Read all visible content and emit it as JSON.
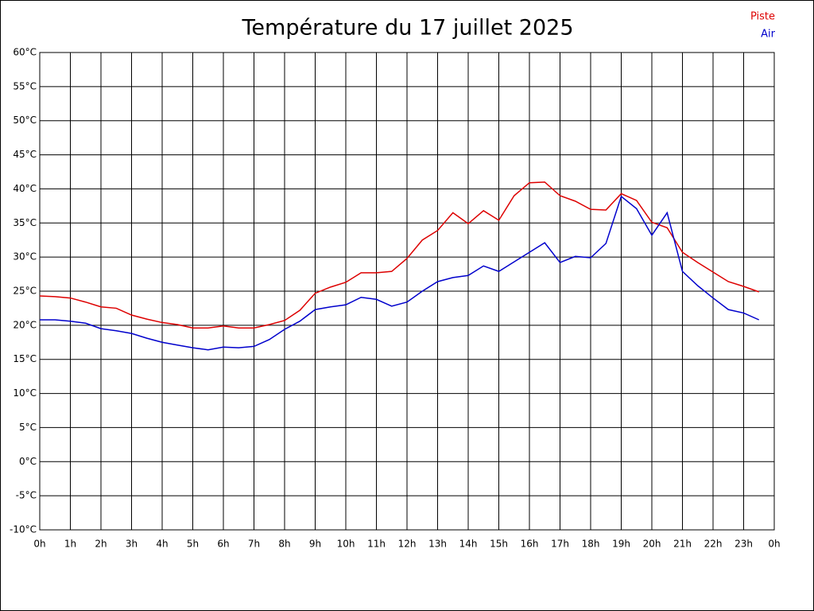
{
  "chart_data": {
    "type": "line",
    "title": "Température du 17 juillet 2025",
    "x": [
      0,
      0.5,
      1,
      1.5,
      2,
      2.5,
      3,
      3.5,
      4,
      4.5,
      5,
      5.5,
      6,
      6.5,
      7,
      7.5,
      8,
      8.5,
      9,
      9.5,
      10,
      10.5,
      11,
      11.5,
      12,
      12.5,
      13,
      13.5,
      14,
      14.5,
      15,
      15.5,
      16,
      16.5,
      17,
      17.5,
      18,
      18.5,
      19,
      19.5,
      20,
      20.5,
      21,
      21.5,
      22,
      22.5,
      23,
      23.5
    ],
    "series": [
      {
        "name": "Piste",
        "color": "#dd0000",
        "values": [
          24.3,
          24.2,
          24.0,
          23.4,
          22.7,
          22.5,
          21.5,
          20.9,
          20.4,
          20.1,
          19.6,
          19.6,
          19.9,
          19.6,
          19.6,
          20.1,
          20.7,
          22.2,
          24.7,
          25.6,
          26.3,
          27.7,
          27.7,
          27.9,
          29.8,
          32.5,
          33.9,
          36.5,
          34.9,
          36.8,
          35.4,
          39.0,
          40.9,
          41.0,
          39.0,
          38.2,
          37.0,
          36.9,
          39.3,
          38.3,
          35.1,
          34.3,
          30.7,
          29.2,
          27.8,
          26.4,
          25.7,
          24.9
        ]
      },
      {
        "name": "Air",
        "color": "#0000cc",
        "values": [
          20.8,
          20.8,
          20.6,
          20.3,
          19.5,
          19.2,
          18.8,
          18.1,
          17.5,
          17.1,
          16.7,
          16.4,
          16.8,
          16.7,
          16.9,
          17.9,
          19.4,
          20.6,
          22.3,
          22.7,
          23.0,
          24.1,
          23.8,
          22.8,
          23.4,
          25.0,
          26.4,
          27.0,
          27.3,
          28.7,
          27.9,
          29.3,
          30.7,
          32.1,
          29.2,
          30.1,
          29.9,
          32.0,
          38.9,
          37.1,
          33.2,
          36.5,
          27.9,
          25.8,
          24.0,
          22.3,
          21.8,
          20.8
        ]
      }
    ],
    "xlim": [
      0,
      24
    ],
    "xticks": [
      {
        "value": 0,
        "label": "0h"
      },
      {
        "value": 1,
        "label": "1h"
      },
      {
        "value": 2,
        "label": "2h"
      },
      {
        "value": 3,
        "label": "3h"
      },
      {
        "value": 4,
        "label": "4h"
      },
      {
        "value": 5,
        "label": "5h"
      },
      {
        "value": 6,
        "label": "6h"
      },
      {
        "value": 7,
        "label": "7h"
      },
      {
        "value": 8,
        "label": "8h"
      },
      {
        "value": 9,
        "label": "9h"
      },
      {
        "value": 10,
        "label": "10h"
      },
      {
        "value": 11,
        "label": "11h"
      },
      {
        "value": 12,
        "label": "12h"
      },
      {
        "value": 13,
        "label": "13h"
      },
      {
        "value": 14,
        "label": "14h"
      },
      {
        "value": 15,
        "label": "15h"
      },
      {
        "value": 16,
        "label": "16h"
      },
      {
        "value": 17,
        "label": "17h"
      },
      {
        "value": 18,
        "label": "18h"
      },
      {
        "value": 19,
        "label": "19h"
      },
      {
        "value": 20,
        "label": "20h"
      },
      {
        "value": 21,
        "label": "21h"
      },
      {
        "value": 22,
        "label": "22h"
      },
      {
        "value": 23,
        "label": "23h"
      },
      {
        "value": 24,
        "label": "0h"
      }
    ],
    "ylim": [
      -10,
      60
    ],
    "yticks": [
      {
        "value": -10,
        "label": "-10°C"
      },
      {
        "value": -5,
        "label": "-5°C"
      },
      {
        "value": 0,
        "label": "0°C"
      },
      {
        "value": 5,
        "label": "5°C"
      },
      {
        "value": 10,
        "label": "10°C"
      },
      {
        "value": 15,
        "label": "15°C"
      },
      {
        "value": 20,
        "label": "20°C"
      },
      {
        "value": 25,
        "label": "25°C"
      },
      {
        "value": 30,
        "label": "30°C"
      },
      {
        "value": 35,
        "label": "35°C"
      },
      {
        "value": 40,
        "label": "40°C"
      },
      {
        "value": 45,
        "label": "45°C"
      },
      {
        "value": 50,
        "label": "50°C"
      },
      {
        "value": 55,
        "label": "55°C"
      },
      {
        "value": 60,
        "label": "60°C"
      }
    ],
    "grid": true,
    "legend": "top-right"
  }
}
